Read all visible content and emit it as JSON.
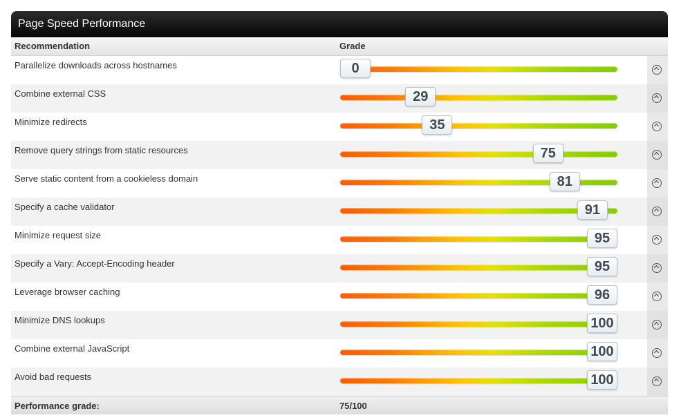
{
  "panel": {
    "title": "Page Speed Performance"
  },
  "table": {
    "col_recommendation": "Recommendation",
    "col_grade": "Grade",
    "rows": [
      {
        "label": "Parallelize downloads across hostnames",
        "grade": "0"
      },
      {
        "label": "Combine external CSS",
        "grade": "29"
      },
      {
        "label": "Minimize redirects",
        "grade": "35"
      },
      {
        "label": "Remove query strings from static resources",
        "grade": "75"
      },
      {
        "label": "Serve static content from a cookieless domain",
        "grade": "81"
      },
      {
        "label": "Specify a cache validator",
        "grade": "91"
      },
      {
        "label": "Minimize request size",
        "grade": "95"
      },
      {
        "label": "Specify a Vary: Accept-Encoding header",
        "grade": "95"
      },
      {
        "label": "Leverage browser caching",
        "grade": "96"
      },
      {
        "label": "Minimize DNS lookups",
        "grade": "100"
      },
      {
        "label": "Combine external JavaScript",
        "grade": "100"
      },
      {
        "label": "Avoid bad requests",
        "grade": "100"
      }
    ]
  },
  "footer": {
    "label": "Performance grade:",
    "value": "75/100"
  },
  "colors": {
    "bar_start": "#ff5a00",
    "bar_mid": "#ffc000",
    "bar_end": "#84cc00",
    "title_bg": "#111111"
  },
  "icons": {
    "expand": "chevron-up-circle-icon"
  }
}
